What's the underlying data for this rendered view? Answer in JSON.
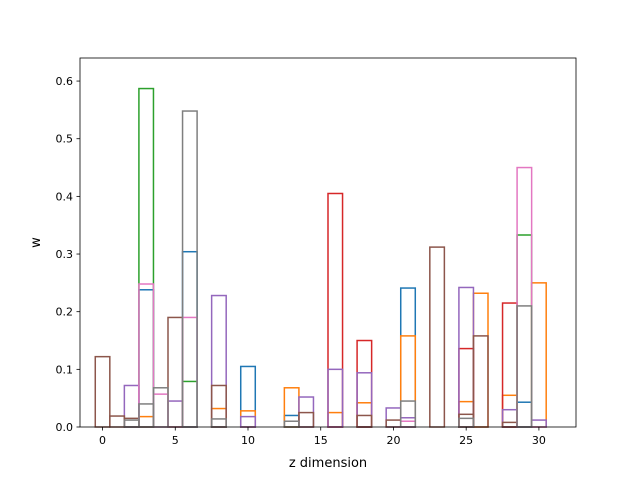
{
  "chart_data": {
    "type": "bar",
    "style": "step-outline",
    "xlabel": "z dimension",
    "ylabel": "w",
    "xlim": [
      -1.55,
      32.55
    ],
    "ylim": [
      0,
      0.64
    ],
    "xticks": [
      0,
      5,
      10,
      15,
      20,
      25,
      30
    ],
    "yticks": [
      0.0,
      0.1,
      0.2,
      0.3,
      0.4,
      0.5,
      0.6
    ],
    "xtick_labels": [
      "0",
      "5",
      "10",
      "15",
      "20",
      "25",
      "30"
    ],
    "ytick_labels": [
      "0.0",
      "0.1",
      "0.2",
      "0.3",
      "0.4",
      "0.5",
      "0.6"
    ],
    "bin_width": 1,
    "grid": false,
    "series": [
      {
        "color": "#1f77b4",
        "bars": [
          [
            3,
            0.238
          ],
          [
            6,
            0.304
          ],
          [
            10,
            0.105
          ],
          [
            13,
            0.02
          ],
          [
            21,
            0.241
          ],
          [
            29,
            0.043
          ]
        ]
      },
      {
        "color": "#ff7f0e",
        "bars": [
          [
            3,
            0.018
          ],
          [
            8,
            0.032
          ],
          [
            10,
            0.028
          ],
          [
            13,
            0.068
          ],
          [
            16,
            0.025
          ],
          [
            18,
            0.042
          ],
          [
            21,
            0.158
          ],
          [
            25,
            0.044
          ],
          [
            26,
            0.232
          ],
          [
            28,
            0.055
          ],
          [
            30,
            0.25
          ]
        ]
      },
      {
        "color": "#2ca02c",
        "bars": [
          [
            3,
            0.587
          ],
          [
            6,
            0.079
          ],
          [
            29,
            0.333
          ]
        ]
      },
      {
        "color": "#d62728",
        "bars": [
          [
            16,
            0.405
          ],
          [
            18,
            0.15
          ],
          [
            25,
            0.136
          ],
          [
            28,
            0.215
          ]
        ]
      },
      {
        "color": "#9467bd",
        "bars": [
          [
            2,
            0.072
          ],
          [
            5,
            0.045
          ],
          [
            8,
            0.228
          ],
          [
            10,
            0.018
          ],
          [
            14,
            0.052
          ],
          [
            16,
            0.1
          ],
          [
            18,
            0.094
          ],
          [
            20,
            0.033
          ],
          [
            21,
            0.016
          ],
          [
            25,
            0.242
          ],
          [
            28,
            0.03
          ],
          [
            30,
            0.012
          ]
        ]
      },
      {
        "color": "#8c564b",
        "bars": [
          [
            0,
            0.122
          ],
          [
            1,
            0.019
          ],
          [
            2,
            0.015
          ],
          [
            5,
            0.19
          ],
          [
            8,
            0.072
          ],
          [
            14,
            0.025
          ],
          [
            18,
            0.02
          ],
          [
            20,
            0.012
          ],
          [
            23,
            0.312
          ],
          [
            25,
            0.022
          ],
          [
            26,
            0.158
          ],
          [
            28,
            0.008
          ]
        ]
      },
      {
        "color": "#e377c2",
        "bars": [
          [
            3,
            0.248
          ],
          [
            4,
            0.057
          ],
          [
            6,
            0.19
          ],
          [
            21,
            0.01
          ],
          [
            29,
            0.45
          ]
        ]
      },
      {
        "color": "#7f7f7f",
        "bars": [
          [
            2,
            0.012
          ],
          [
            3,
            0.04
          ],
          [
            4,
            0.068
          ],
          [
            6,
            0.548
          ],
          [
            8,
            0.014
          ],
          [
            13,
            0.01
          ],
          [
            21,
            0.045
          ],
          [
            25,
            0.015
          ],
          [
            29,
            0.21
          ]
        ]
      }
    ]
  }
}
